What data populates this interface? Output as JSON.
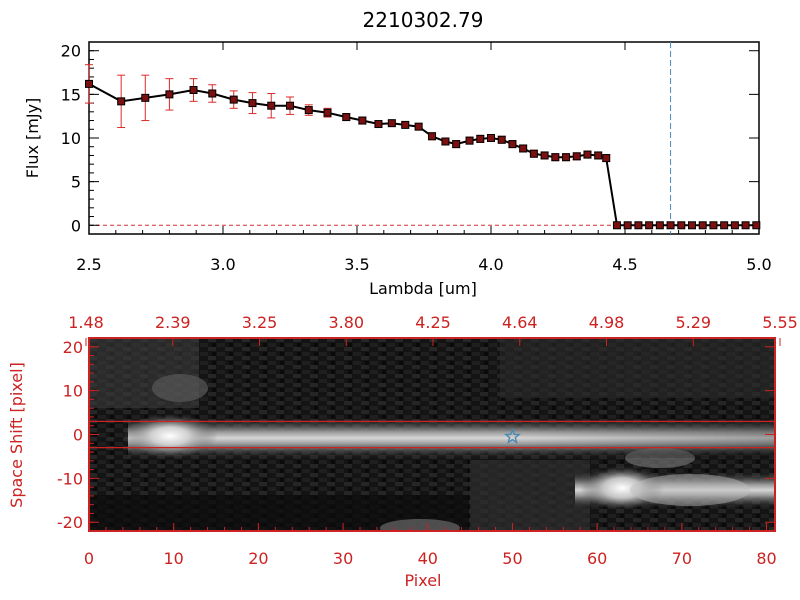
{
  "chart_data": [
    {
      "type": "line",
      "title": "2210302.79",
      "xlabel": "Lambda [um]",
      "ylabel": "Flux [mJy]",
      "xlim": [
        2.5,
        5.0
      ],
      "ylim": [
        -1,
        21
      ],
      "xticks": [
        "2.5",
        "3.0",
        "3.5",
        "4.0",
        "4.5",
        "5.0"
      ],
      "yticks": [
        "0",
        "5",
        "10",
        "15",
        "20"
      ],
      "series": [
        {
          "name": "flux",
          "x": [
            2.5,
            2.62,
            2.71,
            2.8,
            2.89,
            2.96,
            3.04,
            3.11,
            3.18,
            3.25,
            3.32,
            3.39,
            3.46,
            3.52,
            3.58,
            3.63,
            3.68,
            3.73,
            3.78,
            3.83,
            3.87,
            3.92,
            3.96,
            4.0,
            4.04,
            4.08,
            4.12,
            4.16,
            4.2,
            4.24,
            4.28,
            4.32,
            4.36,
            4.4,
            4.43,
            4.47,
            4.51,
            4.55,
            4.59,
            4.63,
            4.67,
            4.71,
            4.75,
            4.79,
            4.83,
            4.87,
            4.91,
            4.95,
            4.99
          ],
          "y": [
            16.2,
            14.2,
            14.6,
            15.0,
            15.5,
            15.1,
            14.4,
            14.0,
            13.7,
            13.7,
            13.2,
            12.9,
            12.4,
            12.0,
            11.6,
            11.7,
            11.5,
            11.3,
            10.2,
            9.6,
            9.3,
            9.7,
            9.9,
            10.0,
            9.8,
            9.3,
            8.8,
            8.2,
            8.0,
            7.8,
            7.8,
            7.9,
            8.1,
            8.0,
            7.7,
            0.0,
            0.0,
            0.0,
            0.0,
            0.0,
            0.0,
            0.0,
            0.0,
            0.0,
            0.0,
            0.0,
            0.0,
            0.0,
            0.0
          ],
          "yerr": [
            2.2,
            3.0,
            2.6,
            1.8,
            1.3,
            1.0,
            1.0,
            1.2,
            1.4,
            1.0,
            0.6,
            0.5,
            0.4,
            0.4,
            0.3,
            0.3,
            0.3,
            0.3,
            0.4,
            0.4,
            0.4,
            0.4,
            0.4,
            0.4,
            0.4,
            0.4,
            0.4,
            0.4,
            0.4,
            0.4,
            0.4,
            0.4,
            0.4,
            0.4,
            0.4,
            0,
            0,
            0,
            0,
            0,
            0,
            0,
            0,
            0,
            0,
            0,
            0,
            0,
            0
          ]
        }
      ],
      "annotations": [
        {
          "type": "vertical-dashed-line",
          "x": 4.67,
          "color": "#4a8ab5"
        },
        {
          "type": "horizontal-dashed-line",
          "y": 0,
          "color": "#d03030"
        }
      ]
    },
    {
      "type": "heatmap",
      "xlabel": "Pixel",
      "ylabel": "Space Shift [pixel]",
      "xlim": [
        0,
        81
      ],
      "ylim": [
        -22,
        22
      ],
      "xticks": [
        "0",
        "10",
        "20",
        "30",
        "40",
        "50",
        "60",
        "70",
        "80"
      ],
      "yticks": [
        "-20",
        "-10",
        "0",
        "10",
        "20"
      ],
      "top_axis_ticks": [
        "1.48",
        "2.39",
        "3.25",
        "3.80",
        "4.25",
        "4.64",
        "4.98",
        "5.29",
        "5.55"
      ],
      "aperture_lines": [
        3,
        -3
      ],
      "marker": {
        "symbol": "star",
        "x": 50,
        "y": -0.5,
        "color": "#4a8ab5"
      },
      "sources": [
        {
          "name": "main-trace",
          "x_start": 7,
          "x_end": 81,
          "y": 0,
          "peak_x": 10,
          "brightness": "high"
        },
        {
          "name": "secondary-trace",
          "x_start": 58,
          "x_end": 81,
          "y": -11,
          "peak_x": 62,
          "brightness": "high"
        }
      ]
    }
  ],
  "colors": {
    "axis_red": "#cc2222",
    "errorbar_red": "#dd2a2a",
    "marker_fill": "#7a1010",
    "line": "#000000",
    "marker_blue": "#4a8ab5"
  }
}
